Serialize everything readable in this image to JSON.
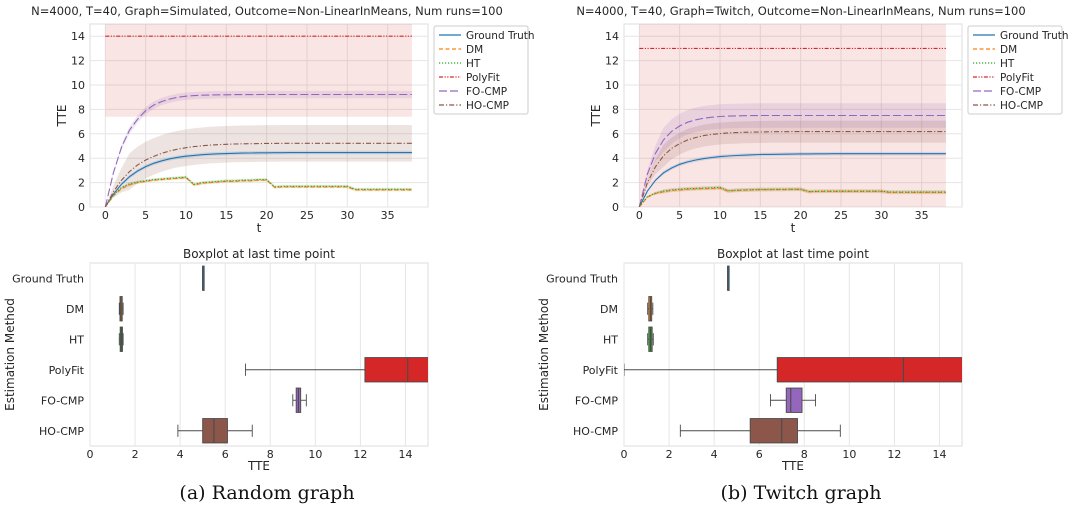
{
  "colors": {
    "Ground Truth": "#1f77b4",
    "DM": "#ff7f0e",
    "HT": "#2ca02c",
    "PolyFit": "#d62728",
    "FO-CMP": "#9467bd",
    "HO-CMP": "#8c564b"
  },
  "panels": [
    {
      "caption": "(a) Random graph",
      "line_title": "N=4000, T=40, Graph=Simulated, Outcome=Non-LinearInMeans, Num runs=100",
      "box_title": "Boxplot at last time point",
      "chart_data": [
        {
          "type": "line",
          "xlabel": "t",
          "ylabel": "TTE",
          "xlim": [
            -1.9,
            40
          ],
          "ylim": [
            0,
            15
          ],
          "xticks": [
            0,
            5,
            10,
            15,
            20,
            25,
            30,
            35
          ],
          "yticks": [
            0,
            2,
            4,
            6,
            8,
            10,
            12,
            14
          ],
          "grid": true,
          "legend": "outside-right",
          "x": [
            0,
            1,
            2,
            3,
            4,
            5,
            6,
            7,
            8,
            9,
            10,
            11,
            12,
            13,
            14,
            15,
            16,
            17,
            18,
            19,
            20,
            21,
            22,
            23,
            24,
            25,
            26,
            27,
            28,
            29,
            30,
            31,
            32,
            33,
            34,
            35,
            36,
            37,
            38
          ],
          "series": [
            {
              "name": "Ground Truth",
              "style": "solid",
              "band": 0.15,
              "values": [
                0,
                1.06,
                1.87,
                2.48,
                2.95,
                3.31,
                3.58,
                3.79,
                3.95,
                4.07,
                4.16,
                4.23,
                4.29,
                4.33,
                4.36,
                4.38,
                4.4,
                4.42,
                4.43,
                4.44,
                4.44,
                4.45,
                4.45,
                4.46,
                4.46,
                4.46,
                4.46,
                4.46,
                4.46,
                4.46,
                4.46,
                4.46,
                4.46,
                4.46,
                4.46,
                4.46,
                4.46,
                4.46,
                4.46
              ]
            },
            {
              "name": "DM",
              "style": "dashed",
              "band": 0.12,
              "values": [
                0,
                0.9,
                1.5,
                1.8,
                2.0,
                2.1,
                2.2,
                2.25,
                2.3,
                2.35,
                2.4,
                1.8,
                1.95,
                2.0,
                2.05,
                2.1,
                2.1,
                2.15,
                2.15,
                2.2,
                2.2,
                1.6,
                1.65,
                1.65,
                1.65,
                1.65,
                1.65,
                1.65,
                1.65,
                1.65,
                1.65,
                1.4,
                1.4,
                1.4,
                1.4,
                1.4,
                1.4,
                1.4,
                1.4
              ]
            },
            {
              "name": "HT",
              "style": "dotted",
              "band": 0.12,
              "values": [
                0,
                1.0,
                1.6,
                1.9,
                2.05,
                2.15,
                2.25,
                2.3,
                2.35,
                2.4,
                2.45,
                1.85,
                2.0,
                2.05,
                2.1,
                2.15,
                2.15,
                2.2,
                2.2,
                2.25,
                2.25,
                1.65,
                1.7,
                1.7,
                1.7,
                1.7,
                1.7,
                1.7,
                1.7,
                1.7,
                1.7,
                1.45,
                1.45,
                1.45,
                1.45,
                1.45,
                1.45,
                1.45,
                1.45
              ]
            },
            {
              "name": "PolyFit",
              "style": "dashdotdot",
              "band": 6.6,
              "values": [
                14,
                14,
                14,
                14,
                14,
                14,
                14,
                14,
                14,
                14,
                14,
                14,
                14,
                14,
                14,
                14,
                14,
                14,
                14,
                14,
                14,
                14,
                14,
                14,
                14,
                14,
                14,
                14,
                14,
                14,
                14,
                14,
                14,
                14,
                14,
                14,
                14,
                14,
                14
              ]
            },
            {
              "name": "FO-CMP",
              "style": "longdash",
              "band": 0.3,
              "values": [
                0,
                2.8,
                4.9,
                6.3,
                7.2,
                7.9,
                8.35,
                8.65,
                8.85,
                9.0,
                9.08,
                9.13,
                9.16,
                9.18,
                9.2,
                9.2,
                9.21,
                9.21,
                9.21,
                9.22,
                9.22,
                9.22,
                9.22,
                9.22,
                9.22,
                9.22,
                9.22,
                9.22,
                9.22,
                9.22,
                9.22,
                9.22,
                9.22,
                9.22,
                9.22,
                9.22,
                9.22,
                9.22,
                9.22
              ]
            },
            {
              "name": "HO-CMP",
              "style": "dashdot",
              "band": 1.5,
              "values": [
                0,
                1.25,
                2.2,
                2.9,
                3.45,
                3.85,
                4.15,
                4.4,
                4.6,
                4.75,
                4.86,
                4.95,
                5.02,
                5.07,
                5.11,
                5.14,
                5.16,
                5.18,
                5.19,
                5.2,
                5.21,
                5.21,
                5.22,
                5.22,
                5.22,
                5.22,
                5.22,
                5.22,
                5.22,
                5.22,
                5.22,
                5.22,
                5.22,
                5.22,
                5.22,
                5.22,
                5.22,
                5.22,
                5.22
              ]
            }
          ]
        },
        {
          "type": "box",
          "xlabel": "TTE",
          "ylabel": "Estimation Method",
          "xlim": [
            0,
            15
          ],
          "xticks": [
            0,
            2,
            4,
            6,
            8,
            10,
            12,
            14
          ],
          "grid": true,
          "boxes": [
            {
              "label": "Ground Truth",
              "whislo": 5.0,
              "q1": 5.0,
              "med": 5.0,
              "q3": 5.0,
              "whishi": 5.0
            },
            {
              "label": "DM",
              "whislo": 1.3,
              "q1": 1.33,
              "med": 1.38,
              "q3": 1.43,
              "whishi": 1.47
            },
            {
              "label": "HT",
              "whislo": 1.3,
              "q1": 1.34,
              "med": 1.39,
              "q3": 1.44,
              "whishi": 1.47
            },
            {
              "label": "PolyFit",
              "whislo": 6.9,
              "q1": 12.2,
              "med": 14.1,
              "q3": 15.5,
              "whishi": 15.5
            },
            {
              "label": "FO-CMP",
              "whislo": 9.0,
              "q1": 9.15,
              "med": 9.25,
              "q3": 9.35,
              "whishi": 9.6
            },
            {
              "label": "HO-CMP",
              "whislo": 3.9,
              "q1": 5.0,
              "med": 5.5,
              "q3": 6.1,
              "whishi": 7.2
            }
          ]
        }
      ]
    },
    {
      "caption": "(b) Twitch graph",
      "line_title": "N=4000, T=40, Graph=Twitch, Outcome=Non-LinearInMeans, Num runs=100",
      "box_title": "Boxplot at last time point",
      "chart_data": [
        {
          "type": "line",
          "xlabel": "t",
          "ylabel": "TTE",
          "xlim": [
            -1.9,
            40
          ],
          "ylim": [
            0,
            15
          ],
          "xticks": [
            0,
            5,
            10,
            15,
            20,
            25,
            30,
            35
          ],
          "yticks": [
            0,
            2,
            4,
            6,
            8,
            10,
            12,
            14
          ],
          "grid": true,
          "legend": "outside-right",
          "x": [
            0,
            1,
            2,
            3,
            4,
            5,
            6,
            7,
            8,
            9,
            10,
            11,
            12,
            13,
            14,
            15,
            16,
            17,
            18,
            19,
            20,
            21,
            22,
            23,
            24,
            25,
            26,
            27,
            28,
            29,
            30,
            31,
            32,
            33,
            34,
            35,
            36,
            37,
            38
          ],
          "series": [
            {
              "name": "Ground Truth",
              "style": "solid",
              "band": 0.15,
              "values": [
                0,
                1.3,
                2.2,
                2.8,
                3.2,
                3.5,
                3.7,
                3.85,
                3.97,
                4.06,
                4.13,
                4.18,
                4.22,
                4.25,
                4.28,
                4.3,
                4.31,
                4.32,
                4.33,
                4.34,
                4.35,
                4.35,
                4.36,
                4.36,
                4.37,
                4.37,
                4.37,
                4.37,
                4.37,
                4.37,
                4.37,
                4.37,
                4.37,
                4.37,
                4.37,
                4.37,
                4.37,
                4.37,
                4.37
              ]
            },
            {
              "name": "DM",
              "style": "dashed",
              "band": 0.15,
              "values": [
                0,
                0.8,
                1.1,
                1.25,
                1.35,
                1.4,
                1.45,
                1.48,
                1.5,
                1.52,
                1.55,
                1.3,
                1.35,
                1.38,
                1.4,
                1.42,
                1.42,
                1.43,
                1.43,
                1.44,
                1.44,
                1.25,
                1.27,
                1.28,
                1.28,
                1.28,
                1.28,
                1.28,
                1.28,
                1.28,
                1.28,
                1.2,
                1.2,
                1.2,
                1.2,
                1.2,
                1.2,
                1.2,
                1.2
              ]
            },
            {
              "name": "HT",
              "style": "dotted",
              "band": 0.15,
              "values": [
                0,
                0.85,
                1.15,
                1.3,
                1.4,
                1.45,
                1.5,
                1.52,
                1.55,
                1.57,
                1.6,
                1.33,
                1.38,
                1.4,
                1.42,
                1.44,
                1.44,
                1.45,
                1.45,
                1.46,
                1.46,
                1.27,
                1.29,
                1.3,
                1.3,
                1.3,
                1.3,
                1.3,
                1.3,
                1.3,
                1.3,
                1.22,
                1.22,
                1.22,
                1.22,
                1.22,
                1.22,
                1.22,
                1.22
              ]
            },
            {
              "name": "PolyFit",
              "style": "dashdotdot",
              "band": 13.0,
              "values": [
                13,
                13,
                13,
                13,
                13,
                13,
                13,
                13,
                13,
                13,
                13,
                13,
                13,
                13,
                13,
                13,
                13,
                13,
                13,
                13,
                13,
                13,
                13,
                13,
                13,
                13,
                13,
                13,
                13,
                13,
                13,
                13,
                13,
                13,
                13,
                13,
                13,
                13,
                13
              ]
            },
            {
              "name": "FO-CMP",
              "style": "longdash",
              "band": 1.0,
              "values": [
                0,
                2.7,
                4.4,
                5.5,
                6.2,
                6.65,
                6.95,
                7.15,
                7.28,
                7.36,
                7.42,
                7.45,
                7.47,
                7.48,
                7.49,
                7.5,
                7.5,
                7.5,
                7.5,
                7.5,
                7.5,
                7.5,
                7.5,
                7.5,
                7.5,
                7.5,
                7.5,
                7.5,
                7.5,
                7.5,
                7.5,
                7.5,
                7.5,
                7.5,
                7.5,
                7.5,
                7.5,
                7.5,
                7.5
              ]
            },
            {
              "name": "HO-CMP",
              "style": "dashdot",
              "band": 0.9,
              "values": [
                0,
                2.0,
                3.3,
                4.2,
                4.8,
                5.2,
                5.5,
                5.7,
                5.85,
                5.95,
                6.02,
                6.07,
                6.1,
                6.12,
                6.14,
                6.15,
                6.16,
                6.17,
                6.17,
                6.18,
                6.18,
                6.18,
                6.18,
                6.18,
                6.18,
                6.18,
                6.18,
                6.18,
                6.18,
                6.18,
                6.18,
                6.18,
                6.18,
                6.18,
                6.18,
                6.18,
                6.18,
                6.18,
                6.18
              ]
            }
          ]
        },
        {
          "type": "box",
          "xlabel": "TTE",
          "ylabel": "Estimation Method",
          "xlim": [
            0,
            15
          ],
          "xticks": [
            0,
            2,
            4,
            6,
            8,
            10,
            12,
            14
          ],
          "grid": true,
          "boxes": [
            {
              "label": "Ground Truth",
              "whislo": 4.6,
              "q1": 4.6,
              "med": 4.6,
              "q3": 4.6,
              "whishi": 4.6
            },
            {
              "label": "DM",
              "whislo": 1.05,
              "q1": 1.1,
              "med": 1.17,
              "q3": 1.23,
              "whishi": 1.28
            },
            {
              "label": "HT",
              "whislo": 1.05,
              "q1": 1.1,
              "med": 1.18,
              "q3": 1.25,
              "whishi": 1.3
            },
            {
              "label": "PolyFit",
              "whislo": 0.0,
              "q1": 6.8,
              "med": 12.4,
              "q3": 15.5,
              "whishi": 15.5
            },
            {
              "label": "FO-CMP",
              "whislo": 6.5,
              "q1": 7.2,
              "med": 7.4,
              "q3": 7.9,
              "whishi": 8.5
            },
            {
              "label": "HO-CMP",
              "whislo": 2.5,
              "q1": 5.6,
              "med": 7.0,
              "q3": 7.7,
              "whishi": 9.6
            }
          ]
        }
      ]
    }
  ]
}
